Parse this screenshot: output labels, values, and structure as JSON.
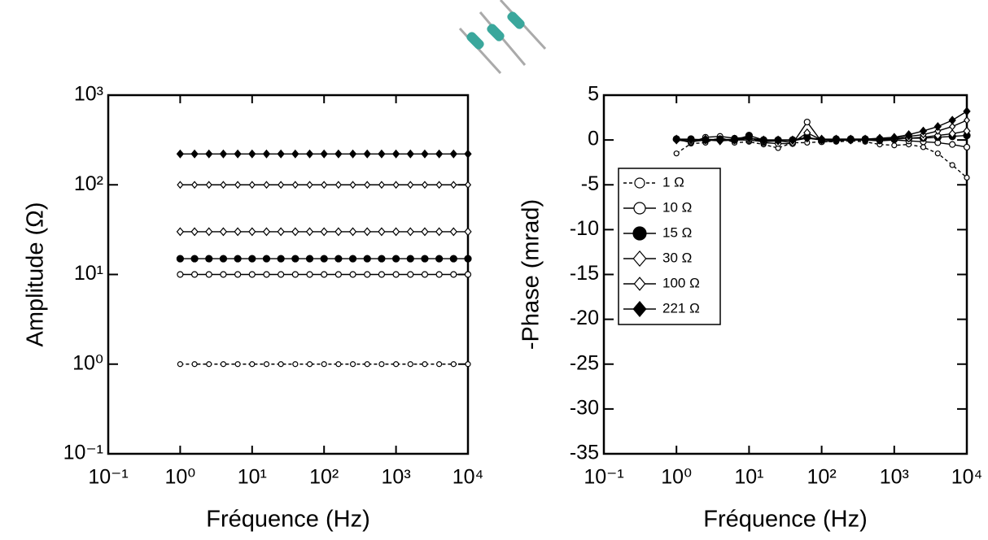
{
  "chart_data": [
    {
      "type": "line",
      "xlabel": "Fréquence (Hz)",
      "ylabel": "Amplitude (Ω)",
      "xscale": "log",
      "yscale": "log",
      "xlim": [
        0.1,
        10000
      ],
      "ylim": [
        0.1,
        1000
      ],
      "xticks": [
        {
          "value": 0.1,
          "label": "10⁻¹"
        },
        {
          "value": 1,
          "label": "10⁰"
        },
        {
          "value": 10,
          "label": "10¹"
        },
        {
          "value": 100,
          "label": "10²"
        },
        {
          "value": 1000,
          "label": "10³"
        },
        {
          "value": 10000,
          "label": "10⁴"
        }
      ],
      "yticks": [
        {
          "value": 0.1,
          "label": "10⁻¹"
        },
        {
          "value": 1,
          "label": "10⁰"
        },
        {
          "value": 10,
          "label": "10¹"
        },
        {
          "value": 100,
          "label": "10²"
        },
        {
          "value": 1000,
          "label": "10³"
        }
      ],
      "x": [
        1,
        1.585,
        2.512,
        3.981,
        6.31,
        10,
        15.85,
        25.12,
        39.81,
        63.1,
        100,
        158.5,
        251.2,
        398.1,
        631,
        1000,
        1585,
        2512,
        3981,
        6310,
        10000
      ],
      "series": [
        {
          "color": "#000000",
          "marker": "circle",
          "filled": false,
          "dashed": true,
          "size": 3,
          "values": [
            1,
            1,
            1,
            1,
            1,
            1,
            1,
            1,
            1,
            1,
            1,
            1,
            1,
            1,
            1,
            1,
            1,
            1,
            1,
            1,
            1
          ]
        },
        {
          "color": "#000000",
          "marker": "circle",
          "filled": false,
          "dashed": false,
          "size": 3.5,
          "values": [
            10,
            10,
            10,
            10,
            10,
            10,
            10,
            10,
            10,
            10,
            10,
            10,
            10,
            10,
            10,
            10,
            10,
            10,
            10,
            10,
            10
          ]
        },
        {
          "color": "#000000",
          "marker": "circle",
          "filled": true,
          "dashed": false,
          "size": 4,
          "values": [
            15,
            15,
            15,
            15,
            15,
            15,
            15,
            15,
            15,
            15,
            15,
            15,
            15,
            15,
            15,
            15,
            15,
            15,
            15,
            15,
            15
          ]
        },
        {
          "color": "#000000",
          "marker": "diamond",
          "filled": false,
          "dashed": false,
          "size": 3.5,
          "values": [
            30,
            30,
            30,
            30,
            30,
            30,
            30,
            30,
            30,
            30,
            30,
            30,
            30,
            30,
            30,
            30,
            30,
            30,
            30,
            30,
            30
          ]
        },
        {
          "color": "#000000",
          "marker": "diamond",
          "filled": false,
          "dashed": false,
          "size": 3,
          "values": [
            100,
            100,
            100,
            100,
            100,
            100,
            100,
            100,
            100,
            100,
            100,
            100,
            100,
            100,
            100,
            100,
            100,
            100,
            100,
            100,
            100
          ]
        },
        {
          "color": "#000000",
          "marker": "diamond",
          "filled": true,
          "dashed": false,
          "size": 3.5,
          "values": [
            221,
            221,
            221,
            221,
            221,
            221,
            221,
            221,
            221,
            221,
            221,
            221,
            221,
            221,
            221,
            221,
            221,
            221,
            221,
            221,
            221
          ]
        }
      ]
    },
    {
      "type": "line",
      "xlabel": "Fréquence (Hz)",
      "ylabel": "-Phase (mrad)",
      "xscale": "log",
      "yscale": "linear",
      "xlim": [
        0.1,
        10000
      ],
      "ylim": [
        -35,
        5
      ],
      "xticks": [
        {
          "value": 0.1,
          "label": "10⁻¹"
        },
        {
          "value": 1,
          "label": "10⁰"
        },
        {
          "value": 10,
          "label": "10¹"
        },
        {
          "value": 100,
          "label": "10²"
        },
        {
          "value": 1000,
          "label": "10³"
        },
        {
          "value": 10000,
          "label": "10⁴"
        }
      ],
      "yticks": [
        -35,
        -30,
        -25,
        -20,
        -15,
        -10,
        -5,
        0,
        5
      ],
      "legend": "upper left",
      "x": [
        1,
        1.585,
        2.512,
        3.981,
        6.31,
        10,
        15.85,
        25.12,
        39.81,
        63.1,
        100,
        158.5,
        251.2,
        398.1,
        631,
        1000,
        1585,
        2512,
        3981,
        6310,
        10000
      ],
      "series": [
        {
          "name": "1 Ω",
          "color": "#000000",
          "marker": "circle",
          "filled": false,
          "dashed": true,
          "size": 3,
          "values": [
            -1.5,
            -0.4,
            -0.3,
            0.3,
            -0.3,
            -0.2,
            -0.5,
            -0.9,
            -0.3,
            -0.3,
            -0.2,
            -0.2,
            -0.1,
            -0.2,
            -0.5,
            -0.6,
            -0.5,
            -0.8,
            -1.5,
            -2.8,
            -4.2
          ]
        },
        {
          "name": "10 Ω",
          "color": "#000000",
          "marker": "circle",
          "filled": false,
          "dashed": false,
          "size": 3.5,
          "values": [
            0.1,
            -0.3,
            0.3,
            0.4,
            0.2,
            0.3,
            -0.3,
            -0.4,
            -0.4,
            2.0,
            -0.2,
            -0.1,
            0,
            0,
            -0.1,
            0,
            -0.1,
            -0.2,
            -0.3,
            -0.5,
            -0.8
          ]
        },
        {
          "name": "15 Ω",
          "color": "#000000",
          "marker": "circle",
          "filled": true,
          "dashed": false,
          "size": 4,
          "values": [
            0.1,
            0.1,
            0,
            0.1,
            0,
            0.5,
            0,
            0,
            0,
            0.3,
            0,
            0.1,
            0.1,
            0.1,
            0.1,
            0.1,
            0.2,
            0.2,
            0.3,
            0.4,
            0.5
          ]
        },
        {
          "name": "30 Ω",
          "color": "#000000",
          "marker": "diamond",
          "filled": false,
          "dashed": false,
          "size": 3.5,
          "values": [
            0,
            -0.2,
            0,
            -0.1,
            0,
            0,
            -0.2,
            -0.1,
            -0.3,
            0.8,
            0,
            0,
            0,
            0,
            0,
            0.1,
            0.2,
            0.3,
            0.5,
            0.7,
            1.0
          ]
        },
        {
          "name": "100 Ω",
          "color": "#000000",
          "marker": "diamond",
          "filled": false,
          "dashed": false,
          "size": 3,
          "values": [
            0,
            0,
            0,
            0,
            0,
            0.2,
            -0.1,
            0,
            -0.1,
            0.2,
            0,
            0,
            0,
            0,
            0.1,
            0.2,
            0.4,
            0.6,
            1.0,
            1.5,
            2.2
          ]
        },
        {
          "name": "221 Ω",
          "color": "#000000",
          "marker": "diamond",
          "filled": true,
          "dashed": false,
          "size": 3.5,
          "values": [
            0.1,
            0,
            0.1,
            0,
            0.1,
            0.2,
            0,
            0,
            0,
            0.2,
            0.1,
            0.1,
            0.1,
            0.1,
            0.2,
            0.3,
            0.6,
            1.0,
            1.5,
            2.2,
            3.2
          ]
        }
      ]
    }
  ]
}
